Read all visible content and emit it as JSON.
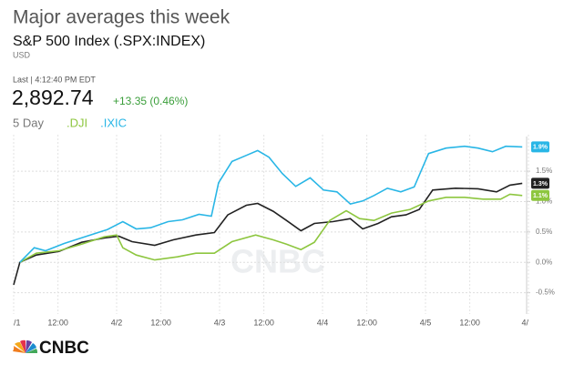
{
  "header": {
    "title": "Major averages this week",
    "subtitle": "S&P 500 Index (.SPX:INDEX)",
    "currency": "USD",
    "last": "Last | 4:12:40 PM EDT",
    "price": "2,892.74",
    "change": "+13.35 (0.46%)",
    "range": "5 Day"
  },
  "logo": "CNBC",
  "watermark": "CNBC",
  "chart_data": {
    "type": "line",
    "xlim": [
      0,
      5
    ],
    "xticks": [
      {
        "value": 0,
        "label": "/1"
      },
      {
        "value": 0.43,
        "label": "12:00"
      },
      {
        "value": 1,
        "label": "4/2"
      },
      {
        "value": 1.43,
        "label": "12:00"
      },
      {
        "value": 2,
        "label": "4/3"
      },
      {
        "value": 2.43,
        "label": "12:00"
      },
      {
        "value": 3,
        "label": "4/4"
      },
      {
        "value": 3.43,
        "label": "12:00"
      },
      {
        "value": 4,
        "label": "4/5"
      },
      {
        "value": 4.43,
        "label": "12:00"
      },
      {
        "value": 5,
        "label": "4/"
      }
    ],
    "ylim": [
      -0.85,
      2.1
    ],
    "yticks": [
      {
        "value": -0.5,
        "label": "-0.5%"
      },
      {
        "value": 0,
        "label": "0.0%"
      },
      {
        "value": 0.5,
        "label": "0.5%"
      },
      {
        "value": 1,
        "label": "1.0%"
      },
      {
        "value": 1.5,
        "label": "1.5%"
      }
    ],
    "grid": true,
    "series": [
      {
        "color": "#222222",
        "x": [
          0,
          0.06,
          0.22,
          0.44,
          0.66,
          0.88,
          1.02,
          1.15,
          1.37,
          1.55,
          1.77,
          1.95,
          2.08,
          2.26,
          2.37,
          2.52,
          2.65,
          2.79,
          2.92,
          3.1,
          3.27,
          3.39,
          3.54,
          3.67,
          3.81,
          3.94,
          4.07,
          4.29,
          4.51,
          4.69,
          4.82,
          4.94
        ],
        "values": [
          -0.37,
          0,
          0.12,
          0.18,
          0.33,
          0.4,
          0.43,
          0.34,
          0.28,
          0.37,
          0.45,
          0.49,
          0.78,
          0.94,
          0.97,
          0.84,
          0.69,
          0.52,
          0.64,
          0.67,
          0.72,
          0.55,
          0.64,
          0.75,
          0.78,
          0.87,
          1.19,
          1.22,
          1.21,
          1.16,
          1.27,
          1.3
        ],
        "end_label": "1.3%"
      },
      {
        "name": ".DJI",
        "color": "#8dc63f",
        "x": [
          0.06,
          0.22,
          0.44,
          0.66,
          0.88,
          1.0,
          1.06,
          1.19,
          1.37,
          1.59,
          1.77,
          1.95,
          2.12,
          2.35,
          2.52,
          2.65,
          2.79,
          2.92,
          3.07,
          3.23,
          3.36,
          3.5,
          3.67,
          3.85,
          4.03,
          4.2,
          4.38,
          4.56,
          4.73,
          4.82,
          4.94
        ],
        "values": [
          0,
          0.15,
          0.19,
          0.3,
          0.42,
          0.45,
          0.24,
          0.12,
          0.04,
          0.09,
          0.15,
          0.15,
          0.34,
          0.45,
          0.37,
          0.3,
          0.21,
          0.33,
          0.69,
          0.85,
          0.72,
          0.69,
          0.81,
          0.87,
          1.01,
          1.07,
          1.07,
          1.04,
          1.04,
          1.12,
          1.1
        ],
        "end_label": "1.1%"
      },
      {
        "name": ".IXIC",
        "color": "#29b6e6",
        "x": [
          0.06,
          0.2,
          0.31,
          0.49,
          0.71,
          0.91,
          1.06,
          1.19,
          1.33,
          1.5,
          1.64,
          1.8,
          1.92,
          1.99,
          2.12,
          2.26,
          2.37,
          2.48,
          2.61,
          2.74,
          2.88,
          3.01,
          3.14,
          3.27,
          3.39,
          3.5,
          3.63,
          3.76,
          3.89,
          4.03,
          4.2,
          4.38,
          4.51,
          4.65,
          4.78,
          4.94
        ],
        "values": [
          0,
          0.24,
          0.19,
          0.31,
          0.43,
          0.54,
          0.67,
          0.55,
          0.57,
          0.67,
          0.7,
          0.79,
          0.76,
          1.31,
          1.66,
          1.76,
          1.84,
          1.73,
          1.46,
          1.25,
          1.39,
          1.19,
          1.16,
          0.96,
          1.01,
          1.1,
          1.22,
          1.16,
          1.24,
          1.79,
          1.88,
          1.91,
          1.88,
          1.82,
          1.91,
          1.9
        ],
        "end_label": "1.9%"
      }
    ]
  }
}
